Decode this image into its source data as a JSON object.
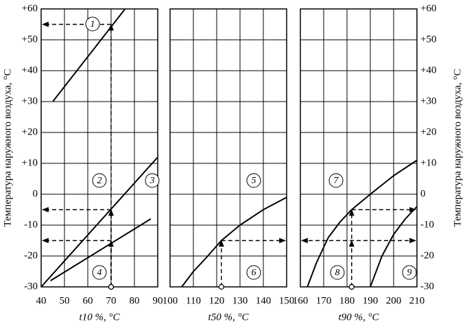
{
  "chart_data": [
    {
      "type": "line",
      "xlabel": "t10 %, °C",
      "ylabel": "Температура наружного воздуха, °C",
      "yaxis": "left",
      "xlim": [
        40,
        90
      ],
      "xticks": [
        40,
        50,
        60,
        70,
        80,
        90
      ],
      "ylim": [
        -30,
        60
      ],
      "yticks": [
        {
          "value": -30,
          "label": "-30"
        },
        {
          "value": -20,
          "label": "-20"
        },
        {
          "value": -10,
          "label": "-10"
        },
        0,
        {
          "value": 10,
          "label": "+10"
        },
        {
          "value": 20,
          "label": "+20"
        },
        {
          "value": 30,
          "label": "+30"
        },
        {
          "value": 40,
          "label": "+40"
        },
        {
          "value": 50,
          "label": "+50"
        },
        {
          "value": 60,
          "label": "+60"
        }
      ],
      "series": [
        {
          "color": "#000000",
          "x": [
            45,
            76
          ],
          "values": [
            30,
            60
          ]
        },
        {
          "color": "#000000",
          "x": [
            40,
            90
          ],
          "values": [
            -30,
            12
          ]
        },
        {
          "color": "#000000",
          "x": [
            44,
            87
          ],
          "values": [
            -28,
            -8
          ]
        }
      ],
      "labels": [
        "1",
        "2",
        "3",
        "4"
      ],
      "guides": [
        {
          "x": 70,
          "y": 55,
          "direction": "left"
        },
        {
          "x": 70,
          "y": -5,
          "direction": "left"
        },
        {
          "x": 70,
          "y": -15,
          "direction": "left"
        }
      ]
    },
    {
      "type": "line",
      "xlabel": "t50 %, °C",
      "xlim": [
        100,
        150
      ],
      "xticks": [
        100,
        110,
        120,
        130,
        140,
        150
      ],
      "ylim": [
        -30,
        60
      ],
      "yticks": [
        -30,
        -20,
        -10,
        0,
        10,
        20,
        30,
        40,
        50,
        60
      ],
      "series": [
        {
          "color": "#000000",
          "x": [
            105,
            110,
            115,
            122,
            130,
            140,
            150
          ],
          "values": [
            -30,
            -25,
            -21,
            -15,
            -10,
            -5,
            -1
          ]
        }
      ],
      "labels": [
        "5",
        "6"
      ],
      "guides": [
        {
          "x": 122,
          "y": -15,
          "direction": "right"
        }
      ]
    },
    {
      "type": "line",
      "xlabel": "t90 %, °C",
      "ylabel": "Температура наружного воздуха, °C",
      "yaxis": "right",
      "xlim": [
        160,
        210
      ],
      "xticks": [
        160,
        170,
        180,
        190,
        200,
        210
      ],
      "ylim": [
        -30,
        60
      ],
      "yticks": [
        {
          "value": -30,
          "label": "-30"
        },
        {
          "value": -20,
          "label": "-20"
        },
        {
          "value": -10,
          "label": "-10"
        },
        0,
        {
          "value": 10,
          "label": "+10"
        },
        {
          "value": 20,
          "label": "+20"
        },
        {
          "value": 30,
          "label": "+30"
        },
        {
          "value": 40,
          "label": "+40"
        },
        {
          "value": 50,
          "label": "+50"
        },
        {
          "value": 60,
          "label": "+60"
        }
      ],
      "series": [
        {
          "color": "#000000",
          "x": [
            163,
            167,
            172,
            177,
            182,
            190,
            200,
            210
          ],
          "values": [
            -30,
            -22,
            -14,
            -9,
            -5,
            0,
            6,
            11
          ]
        },
        {
          "color": "#000000",
          "x": [
            190,
            195,
            200,
            205,
            210
          ],
          "values": [
            -30,
            -20,
            -13,
            -8,
            -4
          ]
        }
      ],
      "labels": [
        "7",
        "8",
        "9"
      ],
      "guides": [
        {
          "x": 182,
          "y": -5,
          "direction": "right"
        },
        {
          "x": 182,
          "y": -15,
          "direction": "both"
        }
      ]
    }
  ]
}
